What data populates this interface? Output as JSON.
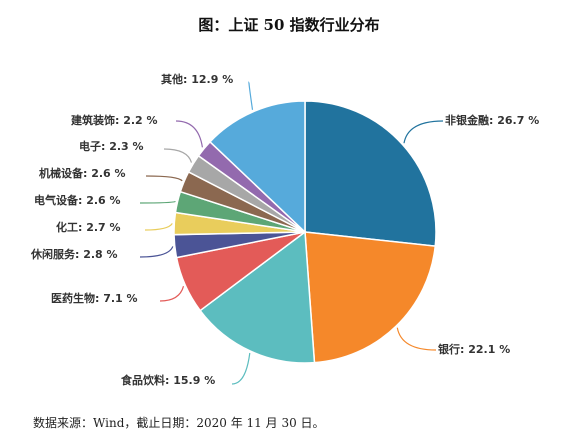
{
  "chart_data": {
    "type": "pie",
    "title": "图：上证 50 指数行业分布",
    "unit": "%",
    "slices": [
      {
        "name": "非银金融",
        "value": 26.7,
        "label": "非银金融: 26.7 %",
        "color": "#21739e"
      },
      {
        "name": "银行",
        "value": 22.1,
        "label": "银行: 22.1 %",
        "color": "#f5882a"
      },
      {
        "name": "食品饮料",
        "value": 15.9,
        "label": "食品饮料: 15.9 %",
        "color": "#5cbdbf"
      },
      {
        "name": "医药生物",
        "value": 7.1,
        "label": "医药生物: 7.1 %",
        "color": "#e35b58"
      },
      {
        "name": "休闲服务",
        "value": 2.8,
        "label": "休闲服务: 2.8 %",
        "color": "#4b5496"
      },
      {
        "name": "化工",
        "value": 2.7,
        "label": "化工: 2.7 %",
        "color": "#e9cd5c"
      },
      {
        "name": "电气设备",
        "value": 2.6,
        "label": "电气设备: 2.6 %",
        "color": "#5da676"
      },
      {
        "name": "机械设备",
        "value": 2.6,
        "label": "机械设备: 2.6 %",
        "color": "#8b6850"
      },
      {
        "name": "电子",
        "value": 2.3,
        "label": "电子: 2.3 %",
        "color": "#a7a7a7"
      },
      {
        "name": "建筑装饰",
        "value": 2.2,
        "label": "建筑装饰: 2.2 %",
        "color": "#936aae"
      },
      {
        "name": "其他",
        "value": 12.9,
        "label": "其他: 12.9 %",
        "color": "#56aadb"
      }
    ]
  },
  "source_note": "数据来源：Wind，截止日期：2020 年 11 月 30 日。"
}
